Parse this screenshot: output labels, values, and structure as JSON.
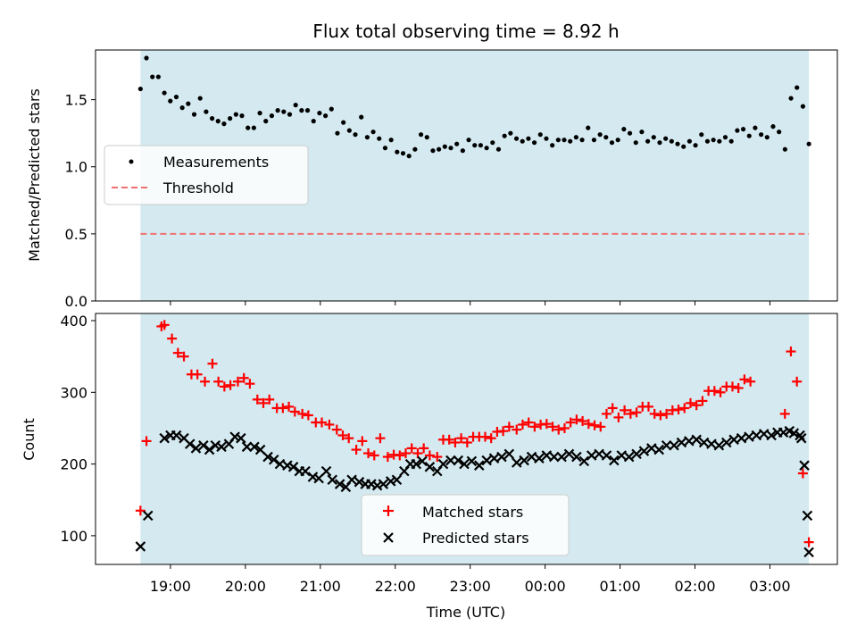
{
  "chart_data": [
    {
      "type": "scatter",
      "title": "Flux total observing time = 8.92 h",
      "xlabel": "",
      "ylabel": "Matched/Predicted stars",
      "ylim": [
        0.0,
        1.87
      ],
      "yticks": [
        "0.0",
        "0.5",
        "1.0",
        "1.5"
      ],
      "ytick_values": [
        0.0,
        0.5,
        1.0,
        1.5
      ],
      "xlim_hours": [
        18.0,
        27.9
      ],
      "observing_window_hours": [
        18.6,
        27.52
      ],
      "window_color": "#d4eaf0",
      "threshold": 0.5,
      "legend": {
        "placement": "center-left",
        "entries": [
          "Measurements",
          "Threshold"
        ]
      },
      "series": [
        {
          "name": "Measurements",
          "marker": "dot",
          "color": "#000000",
          "x_start": 18.6,
          "x_step": 0.075,
          "values": [
            1.58,
            1.81,
            1.67,
            1.67,
            1.55,
            1.49,
            1.52,
            1.44,
            1.47,
            1.39,
            1.51,
            1.41,
            1.36,
            1.34,
            1.32,
            1.36,
            1.39,
            1.38,
            1.29,
            1.29,
            1.4,
            1.34,
            1.38,
            1.42,
            1.41,
            1.39,
            1.46,
            1.42,
            1.42,
            1.34,
            1.4,
            1.38,
            1.43,
            1.25,
            1.33,
            1.27,
            1.24,
            1.37,
            1.22,
            1.26,
            1.21,
            1.14,
            1.2,
            1.11,
            1.1,
            1.08,
            1.13,
            1.24,
            1.22,
            1.12,
            1.13,
            1.15,
            1.14,
            1.17,
            1.12,
            1.2,
            1.16,
            1.16,
            1.14,
            1.18,
            1.13,
            1.23,
            1.25,
            1.21,
            1.19,
            1.21,
            1.18,
            1.24,
            1.21,
            1.16,
            1.2,
            1.2,
            1.19,
            1.22,
            1.2,
            1.29,
            1.2,
            1.24,
            1.22,
            1.18,
            1.2,
            1.28,
            1.25,
            1.18,
            1.26,
            1.19,
            1.22,
            1.18,
            1.21,
            1.19,
            1.17,
            1.15,
            1.19,
            1.16,
            1.24,
            1.19,
            1.2,
            1.19,
            1.22,
            1.19,
            1.27,
            1.28,
            1.23,
            1.29,
            1.24,
            1.22,
            1.3,
            1.26,
            1.13,
            1.51,
            1.59,
            1.45,
            1.17
          ]
        },
        {
          "name": "Threshold",
          "style": "dashed",
          "color": "#f07070",
          "x_range": [
            18.6,
            27.52
          ],
          "values": [
            0.5,
            0.5
          ]
        }
      ]
    },
    {
      "type": "scatter",
      "title": "",
      "xlabel": "Time (UTC)",
      "ylabel": "Count",
      "ylim": [
        60,
        410
      ],
      "yticks": [
        "100",
        "200",
        "300",
        "400"
      ],
      "ytick_values": [
        100,
        200,
        300,
        400
      ],
      "xticks": [
        "19:00",
        "20:00",
        "21:00",
        "22:00",
        "23:00",
        "00:00",
        "01:00",
        "02:00",
        "03:00"
      ],
      "xtick_hours": [
        19,
        20,
        21,
        22,
        23,
        24,
        25,
        26,
        27
      ],
      "xlim_hours": [
        18.0,
        27.9
      ],
      "observing_window_hours": [
        18.6,
        27.52
      ],
      "window_color": "#d4eaf0",
      "legend": {
        "placement": "lower-center",
        "entries": [
          "Matched stars",
          "Predicted stars"
        ]
      },
      "series": [
        {
          "name": "Matched stars",
          "marker": "plus",
          "color": "#ff0000",
          "x_start": 18.6,
          "x_step": 0.075,
          "values": [
            135,
            232,
            392,
            394,
            375,
            355,
            350,
            325,
            325,
            315,
            340,
            315,
            308,
            310,
            315,
            320,
            312,
            290,
            285,
            290,
            278,
            278,
            280,
            273,
            270,
            268,
            258,
            258,
            255,
            248,
            240,
            236,
            220,
            232,
            215,
            212,
            236,
            210,
            213,
            212,
            215,
            222,
            215,
            222,
            212,
            210,
            234,
            234,
            230,
            236,
            230,
            238,
            238,
            238,
            236,
            245,
            246,
            252,
            248,
            255,
            258,
            252,
            255,
            256,
            252,
            248,
            250,
            258,
            262,
            260,
            256,
            254,
            252,
            270,
            278,
            265,
            275,
            270,
            272,
            280,
            280,
            270,
            268,
            270,
            275,
            276,
            278,
            285,
            282,
            288,
            302,
            302,
            300,
            308,
            308,
            306,
            318,
            315,
            270,
            357,
            315,
            187,
            91
          ],
          "x_values_note": "",
          "x_values": [
            18.6,
            18.68,
            18.88,
            18.92,
            19.02,
            19.1,
            19.18,
            19.28,
            19.36,
            19.46,
            19.56,
            19.64,
            19.72,
            19.8,
            19.9,
            19.98,
            20.06,
            20.16,
            20.24,
            20.32,
            20.42,
            20.5,
            20.58,
            20.66,
            20.76,
            20.84,
            20.94,
            21.02,
            21.12,
            21.22,
            21.3,
            21.38,
            21.48,
            21.56,
            21.64,
            21.72,
            21.8,
            21.9,
            21.98,
            22.06,
            22.14,
            22.22,
            22.3,
            22.38,
            22.46,
            22.56,
            22.64,
            22.72,
            22.8,
            22.88,
            22.96,
            23.04,
            23.12,
            23.2,
            23.28,
            23.36,
            23.44,
            23.52,
            23.62,
            23.7,
            23.78,
            23.86,
            23.94,
            24.02,
            24.1,
            24.18,
            24.26,
            24.34,
            24.42,
            24.5,
            24.58,
            24.66,
            24.74,
            24.82,
            24.9,
            24.98,
            25.06,
            25.14,
            25.22,
            25.3,
            25.38,
            25.46,
            25.54,
            25.62,
            25.7,
            25.78,
            25.86,
            25.94,
            26.02,
            26.1,
            26.18,
            26.26,
            26.34,
            26.42,
            26.5,
            26.58,
            26.66,
            26.74,
            27.2,
            27.28,
            27.36,
            27.44,
            27.52
          ]
        },
        {
          "name": "Predicted stars",
          "marker": "x",
          "color": "#000000",
          "values": [
            85,
            128,
            236,
            240,
            240,
            236,
            228,
            222,
            226,
            220,
            226,
            224,
            228,
            238,
            236,
            224,
            224,
            220,
            210,
            206,
            200,
            198,
            196,
            190,
            190,
            182,
            180,
            190,
            178,
            172,
            168,
            178,
            175,
            172,
            172,
            170,
            172,
            176,
            178,
            190,
            200,
            200,
            204,
            196,
            190,
            200,
            205,
            205,
            200,
            204,
            198,
            205,
            208,
            210,
            214,
            202,
            205,
            210,
            208,
            212,
            210,
            210,
            214,
            210,
            204,
            212,
            214,
            212,
            205,
            212,
            210,
            214,
            218,
            222,
            220,
            226,
            226,
            230,
            232,
            234,
            230,
            228,
            226,
            230,
            234,
            236,
            238,
            240,
            242,
            240,
            244,
            244,
            246,
            243,
            240,
            236,
            198,
            128,
            77
          ],
          "x_values": [
            18.6,
            18.7,
            18.92,
            19.0,
            19.08,
            19.18,
            19.26,
            19.34,
            19.44,
            19.52,
            19.6,
            19.68,
            19.78,
            19.86,
            19.94,
            20.02,
            20.12,
            20.2,
            20.3,
            20.38,
            20.46,
            20.56,
            20.64,
            20.72,
            20.8,
            20.9,
            20.98,
            21.08,
            21.16,
            21.26,
            21.34,
            21.42,
            21.52,
            21.6,
            21.68,
            21.76,
            21.84,
            21.94,
            22.02,
            22.12,
            22.2,
            22.28,
            22.36,
            22.46,
            22.56,
            22.64,
            22.74,
            22.84,
            22.92,
            23.02,
            23.12,
            23.22,
            23.32,
            23.42,
            23.52,
            23.62,
            23.72,
            23.82,
            23.92,
            24.02,
            24.12,
            24.22,
            24.32,
            24.42,
            24.52,
            24.62,
            24.72,
            24.82,
            24.92,
            25.02,
            25.12,
            25.22,
            25.32,
            25.42,
            25.52,
            25.62,
            25.72,
            25.82,
            25.92,
            26.02,
            26.12,
            26.22,
            26.32,
            26.42,
            26.52,
            26.62,
            26.72,
            26.82,
            26.92,
            27.02,
            27.1,
            27.18,
            27.26,
            27.32,
            27.4,
            27.42,
            27.46,
            27.5,
            27.52
          ]
        }
      ]
    }
  ]
}
